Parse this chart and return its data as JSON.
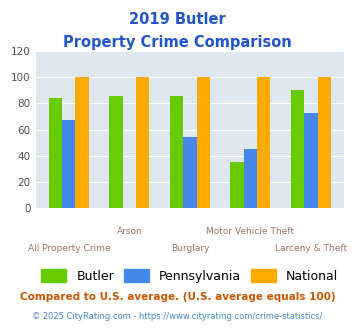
{
  "title_line1": "2019 Butler",
  "title_line2": "Property Crime Comparison",
  "categories": [
    "All Property Crime",
    "Arson",
    "Burglary",
    "Motor Vehicle Theft",
    "Larceny & Theft"
  ],
  "butler": [
    84,
    86,
    86,
    35,
    90
  ],
  "pennsylvania": [
    67,
    null,
    54,
    45,
    73
  ],
  "national": [
    100,
    100,
    100,
    100,
    100
  ],
  "butler_color": "#66cc00",
  "pennsylvania_color": "#4488ee",
  "national_color": "#ffaa00",
  "background_color": "#dde8f0",
  "ylim": [
    0,
    120
  ],
  "yticks": [
    0,
    20,
    40,
    60,
    80,
    100,
    120
  ],
  "xlabel_color": "#997766",
  "title_color": "#2255cc",
  "legend_fontsize": 9,
  "footnote1": "Compared to U.S. average. (U.S. average equals 100)",
  "footnote2": "© 2025 CityRating.com - https://www.cityrating.com/crime-statistics/",
  "footnote1_color": "#cc5500",
  "footnote2_color": "#4488cc"
}
